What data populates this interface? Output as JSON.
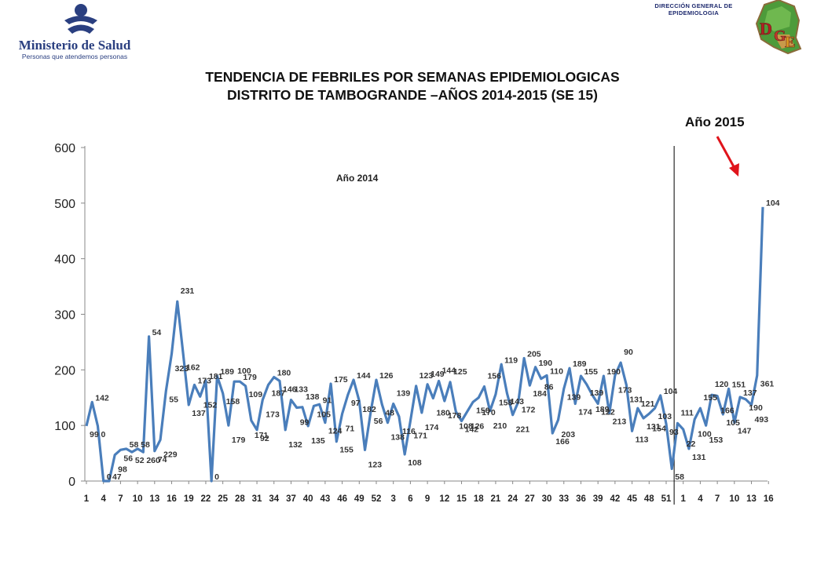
{
  "header": {
    "ministry_name": "Ministerio de Salud",
    "ministry_tagline": "Personas que atendemos personas",
    "dge_line1": "DIRECCIÓN GENERAL DE",
    "dge_line2": "EPIDEMIOLOGIA",
    "dge_logo_letters": "DGE"
  },
  "title_line1": "TENDENCIA DE FEBRILES POR SEMANAS EPIDEMIOLOGICAS",
  "title_line2": "DISTRITO DE TAMBOGRANDE –AÑOS 2014-2015 (SE 15)",
  "chart_data": {
    "type": "line",
    "title": "TENDENCIA DE FEBRILES POR SEMANAS EPIDEMIOLOGICAS DISTRITO DE TAMBOGRANDE –AÑOS 2014-2015 (SE 15)",
    "xlabel": "",
    "ylabel": "",
    "ylim": [
      0,
      600
    ],
    "yticks": [
      0,
      100,
      200,
      300,
      400,
      500,
      600
    ],
    "grid": false,
    "legend": "none",
    "series_color": "#4a7ebb",
    "arrow_color": "#e0141b",
    "x_tick_labels": [
      "1",
      "4",
      "7",
      "10",
      "13",
      "16",
      "19",
      "22",
      "25",
      "28",
      "31",
      "34",
      "37",
      "40",
      "43",
      "46",
      "49",
      "52",
      "3",
      "6",
      "9",
      "12",
      "15",
      "18",
      "21",
      "24",
      "27",
      "30",
      "33",
      "36",
      "39",
      "42",
      "45",
      "48",
      "51",
      "1",
      "4",
      "7",
      "10",
      "13",
      "16"
    ],
    "annotations": {
      "year_2014": "Año 2014",
      "year_2015": "Año 2015"
    },
    "series": [
      {
        "year": "2014",
        "weeks": [
          1,
          52
        ],
        "values": [
          99,
          142,
          99,
          0,
          0,
          47,
          56,
          58,
          52,
          58,
          52,
          260,
          54,
          74,
          162,
          229,
          323,
          231,
          137,
          173,
          152,
          181,
          0,
          189,
          158,
          100,
          179,
          179,
          171,
          109,
          92,
          146,
          173,
          187,
          180,
          92,
          146,
          132,
          133,
          99,
          135,
          138,
          105,
          175,
          71,
          121,
          155,
          182,
          144,
          56,
          123,
          182
        ]
      },
      {
        "year": "2014 (cont.)",
        "weeks": [
          53,
          104
        ],
        "values": [
          138,
          105,
          139,
          116,
          48,
          108,
          171,
          123,
          174,
          149,
          180,
          144,
          178,
          125,
          108,
          125,
          142,
          150,
          170,
          126,
          156,
          210,
          158,
          119,
          143,
          221,
          172,
          205,
          184,
          190,
          86,
          110,
          166,
          203,
          139,
          189,
          174,
          155,
          139,
          189,
          122,
          190,
          213,
          173,
          90,
          131,
          113,
          121,
          131,
          154,
          103,
          22
        ]
      },
      {
        "year": "2015",
        "weeks": [
          1,
          16
        ],
        "values": [
          104,
          93,
          58,
          111,
          131,
          100,
          155,
          153,
          120,
          166,
          105,
          151,
          147,
          137,
          190,
          493
        ]
      }
    ],
    "point_labels": [
      "99",
      "142",
      "0",
      "0",
      "47",
      "98",
      "56",
      "58",
      "52",
      "58",
      "260",
      "54",
      "74",
      "229",
      "55",
      "323",
      "231",
      "162",
      "137",
      "173",
      "152",
      "181",
      "0",
      "189",
      "158",
      "179",
      "100",
      "179",
      "109",
      "171",
      "92",
      "173",
      "187",
      "180",
      "146",
      "132",
      "133",
      "99",
      "138",
      "135",
      "105",
      "91",
      "124",
      "175",
      "155",
      "71",
      "97",
      "144",
      "182",
      "123",
      "56",
      "126",
      "48",
      "138",
      "139",
      "116",
      "108",
      "171",
      "123",
      "174",
      "149",
      "180",
      "144",
      "178",
      "125",
      "108",
      "142",
      "126",
      "150",
      "170",
      "156",
      "210",
      "158",
      "119",
      "143",
      "221",
      "172",
      "205",
      "184",
      "190",
      "86",
      "110",
      "166",
      "203",
      "139",
      "189",
      "174",
      "155",
      "139",
      "189",
      "122",
      "190",
      "213",
      "173",
      "90",
      "131",
      "113",
      "121",
      "131",
      "154",
      "103",
      "104",
      "93",
      "58",
      "111",
      "22",
      "131",
      "100",
      "155",
      "153",
      "120",
      "166",
      "105",
      "151",
      "147",
      "137",
      "190",
      "493",
      "361",
      "104"
    ]
  }
}
